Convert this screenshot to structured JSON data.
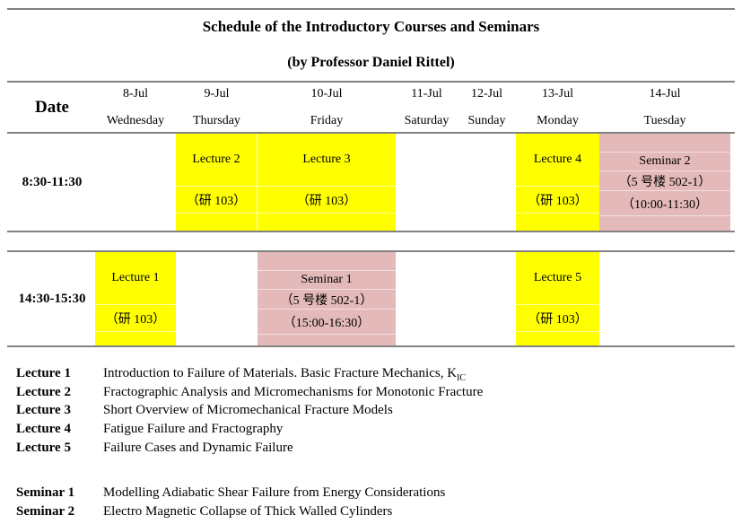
{
  "page": {
    "title": "Schedule of the Introductory Courses and Seminars",
    "subtitle": "(by Professor Daniel Rittel)"
  },
  "colors": {
    "lecture_highlight": "#FFFF00",
    "seminar_highlight": "#E4B9B9",
    "rule_line": "#828282",
    "text": "#000000"
  },
  "header": {
    "date_label": "Date",
    "days": [
      {
        "date": "8-Jul",
        "day": "Wednesday"
      },
      {
        "date": "9-Jul",
        "day": "Thursday"
      },
      {
        "date": "10-Jul",
        "day": "Friday"
      },
      {
        "date": "11-Jul",
        "day": "Saturday"
      },
      {
        "date": "12-Jul",
        "day": "Sunday"
      },
      {
        "date": "13-Jul",
        "day": "Monday"
      },
      {
        "date": "14-Jul",
        "day": "Tuesday"
      }
    ]
  },
  "schedule": {
    "rows": [
      {
        "time": "8:30-11:30",
        "cells": [
          {
            "type": "empty"
          },
          {
            "type": "lecture",
            "title": "Lecture 2",
            "location": "（研 103）"
          },
          {
            "type": "lecture",
            "title": "Lecture 3",
            "location": "（研 103）"
          },
          {
            "type": "empty"
          },
          {
            "type": "empty"
          },
          {
            "type": "lecture",
            "title": "Lecture 4",
            "location": "（研 103）"
          },
          {
            "type": "seminar",
            "title": "Seminar 2",
            "location": "（5 号楼 502-1）",
            "time_note": "（10:00-11:30）"
          }
        ]
      },
      {
        "time": "14:30-15:30",
        "cells": [
          {
            "type": "lecture",
            "title": "Lecture 1",
            "location": "（研 103）"
          },
          {
            "type": "empty"
          },
          {
            "type": "seminar",
            "title": "Seminar 1",
            "location": "（5 号楼 502-1）",
            "time_note": "（15:00-16:30）"
          },
          {
            "type": "empty"
          },
          {
            "type": "empty"
          },
          {
            "type": "lecture",
            "title": "Lecture 5",
            "location": "（研 103）"
          },
          {
            "type": "empty"
          }
        ]
      }
    ]
  },
  "legend": {
    "lectures": [
      {
        "label": "Lecture 1",
        "text": "Introduction to Failure of Materials. Basic Fracture Mechanics, K",
        "subscript": "IC"
      },
      {
        "label": "Lecture 2",
        "text": "Fractographic Analysis and Micromechanisms for Monotonic Fracture"
      },
      {
        "label": "Lecture 3",
        "text": "Short Overview of Micromechanical Fracture Models"
      },
      {
        "label": "Lecture 4",
        "text": "Fatigue Failure and Fractography"
      },
      {
        "label": "Lecture 5",
        "text": "Failure Cases and Dynamic Failure"
      }
    ],
    "seminars": [
      {
        "label": "Seminar 1",
        "text": "Modelling Adiabatic Shear Failure from Energy Considerations"
      },
      {
        "label": "Seminar 2",
        "text": "Electro Magnetic Collapse of Thick Walled Cylinders"
      }
    ]
  }
}
